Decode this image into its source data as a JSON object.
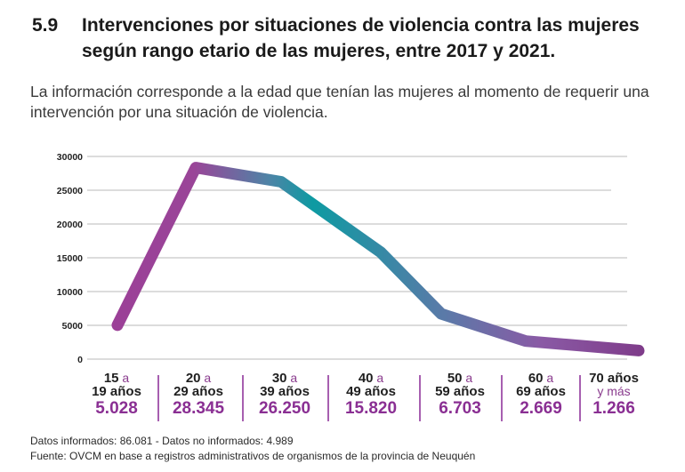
{
  "header": {
    "number": "5.9",
    "title_line1": "Intervenciones por situaciones de violencia contra las mujeres",
    "title_line2": "según rango etario de las mujeres, entre 2017 y 2021.",
    "subtitle": "La información corresponde a la edad que tenían las mujeres al momento de requerir una intervención por una situación de violencia."
  },
  "colors": {
    "line_purple": "#9b3f97",
    "line_teal": "#0e9aa2",
    "value_text": "#8a2f93",
    "gridline": "#d0d0d0"
  },
  "chart_data": {
    "type": "line",
    "title": "Intervenciones por situaciones de violencia contra las mujeres según rango etario de las mujeres, entre 2017 y 2021.",
    "xlabel": "",
    "ylabel": "",
    "ylim": [
      0,
      30000
    ],
    "yticks": [
      "0",
      "5000",
      "10000",
      "15000",
      "20000",
      "25000",
      "30000"
    ],
    "grid": true,
    "legend": "none",
    "categories": [
      {
        "line1": "15",
        "line1_small": "a",
        "line2": "19 años",
        "line2_small": "",
        "value_label": "5.028"
      },
      {
        "line1": "20",
        "line1_small": "a",
        "line2": "29 años",
        "line2_small": "",
        "value_label": "28.345"
      },
      {
        "line1": "30",
        "line1_small": "a",
        "line2": "39 años",
        "line2_small": "",
        "value_label": "26.250"
      },
      {
        "line1": "40",
        "line1_small": "a",
        "line2": "49 años",
        "line2_small": "",
        "value_label": "15.820"
      },
      {
        "line1": "50",
        "line1_small": "a",
        "line2": "59 años",
        "line2_small": "",
        "value_label": "6.703"
      },
      {
        "line1": "60",
        "line1_small": "a",
        "line2": "69 años",
        "line2_small": "",
        "value_label": "2.669"
      },
      {
        "line1": "70 años",
        "line1_small": "",
        "line2": "",
        "line2_small": "y más",
        "value_label": "1.266"
      }
    ],
    "series": [
      {
        "name": "Intervenciones",
        "values": [
          5028,
          28345,
          26250,
          15820,
          6703,
          2669,
          1266
        ]
      }
    ]
  },
  "footer": {
    "line1": "Datos informados: 86.081 - Datos no informados: 4.989",
    "line2": "Fuente: OVCM en base a registros administrativos de organismos de la provincia de Neuquén"
  }
}
